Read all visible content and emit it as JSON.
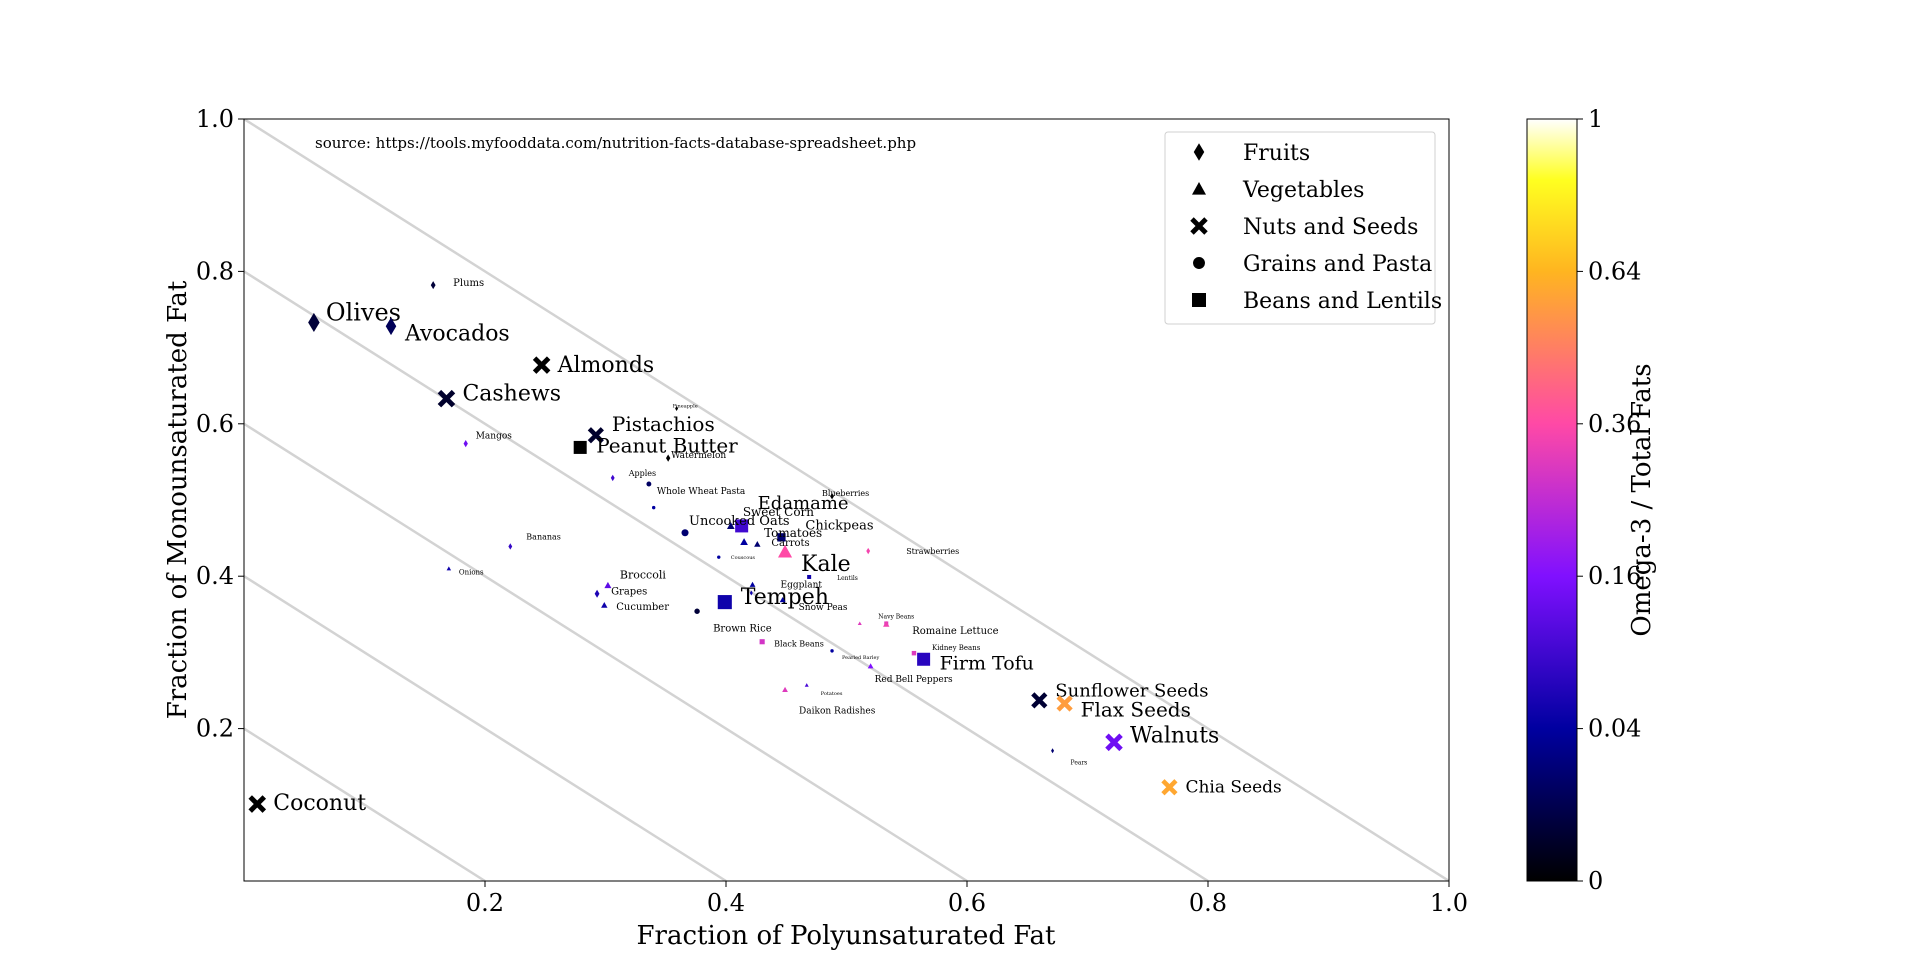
{
  "chart_data": {
    "type": "scatter",
    "xlabel": "Fraction of Polyunsaturated Fat",
    "ylabel": "Fraction of Monounsaturated Fat",
    "xlim": [
      0,
      1.0
    ],
    "ylim": [
      0,
      1.0
    ],
    "xticks": [
      "0.2",
      "0.4",
      "0.6",
      "0.8",
      "1.0"
    ],
    "xtick_values": [
      0.2,
      0.4,
      0.6,
      0.8,
      1.0
    ],
    "yticks": [
      "0.2",
      "0.4",
      "0.6",
      "0.8",
      "1.0"
    ],
    "ytick_values": [
      0.2,
      0.4,
      0.6,
      0.8,
      1.0
    ],
    "grid": false,
    "reference_lines_sum": [
      0.2,
      0.4,
      0.6,
      0.8,
      1.0
    ],
    "annotation": "source: https://tools.myfooddata.com/nutrition-facts-database-spreadsheet.php",
    "legend": {
      "placement": "top-right",
      "entries": [
        {
          "group": "fruit",
          "label": "Fruits",
          "marker": "diamond"
        },
        {
          "group": "veg",
          "label": "Vegetables",
          "marker": "triangle"
        },
        {
          "group": "nut",
          "label": "Nuts and Seeds",
          "marker": "x"
        },
        {
          "group": "grain",
          "label": "Grains and Pasta",
          "marker": "circle"
        },
        {
          "group": "bean",
          "label": "Beans and Lentils",
          "marker": "square"
        }
      ]
    },
    "colorbar": {
      "label": "Omega-3 / Total Fats",
      "colormap": "gnuplot2",
      "ticks": [
        "0",
        "0.04",
        "0.16",
        "0.36",
        "0.64",
        "1"
      ],
      "tick_values": [
        0,
        0.04,
        0.16,
        0.36,
        0.64,
        1
      ]
    },
    "points": [
      {
        "name": "Olives",
        "x": 0.058,
        "y": 0.733,
        "group": "fruit",
        "omega3": 0.005,
        "label_size": 24,
        "label_dx": 12,
        "label_dy": -2
      },
      {
        "name": "Avocados",
        "x": 0.122,
        "y": 0.728,
        "group": "fruit",
        "omega3": 0.012,
        "label_size": 22,
        "label_dx": 14,
        "label_dy": 14
      },
      {
        "name": "Almonds",
        "x": 0.247,
        "y": 0.677,
        "group": "nut",
        "omega3": 0.0,
        "label_size": 22,
        "label_dx": 16,
        "label_dy": 7
      },
      {
        "name": "Cashews",
        "x": 0.168,
        "y": 0.633,
        "group": "nut",
        "omega3": 0.003,
        "label_size": 22,
        "label_dx": 16,
        "label_dy": 2
      },
      {
        "name": "Pistachios",
        "x": 0.292,
        "y": 0.585,
        "group": "nut",
        "omega3": 0.003,
        "label_size": 20,
        "label_dx": 16,
        "label_dy": -4
      },
      {
        "name": "Peanut Butter",
        "x": 0.279,
        "y": 0.569,
        "group": "bean",
        "omega3": 0.0,
        "label_size": 20,
        "label_dx": 16,
        "label_dy": 5
      },
      {
        "name": "Coconut",
        "x": 0.011,
        "y": 0.101,
        "group": "nut",
        "omega3": 0.0,
        "label_size": 22,
        "label_dx": 16,
        "label_dy": 6
      },
      {
        "name": "Sunflower Seeds",
        "x": 0.66,
        "y": 0.237,
        "group": "nut",
        "omega3": 0.004,
        "label_size": 18,
        "label_dx": 16,
        "label_dy": -4
      },
      {
        "name": "Flax Seeds",
        "x": 0.681,
        "y": 0.233,
        "group": "nut",
        "omega3": 0.57,
        "label_size": 20,
        "label_dx": 16,
        "label_dy": 13
      },
      {
        "name": "Walnuts",
        "x": 0.722,
        "y": 0.182,
        "group": "nut",
        "omega3": 0.14,
        "label_size": 22,
        "label_dx": 16,
        "label_dy": 0
      },
      {
        "name": "Chia Seeds",
        "x": 0.768,
        "y": 0.123,
        "group": "nut",
        "omega3": 0.6,
        "label_size": 17,
        "label_dx": 16,
        "label_dy": 5
      },
      {
        "name": "Firm Tofu",
        "x": 0.564,
        "y": 0.291,
        "group": "bean",
        "omega3": 0.07,
        "label_size": 19,
        "label_dx": 16,
        "label_dy": 10
      },
      {
        "name": "Tempeh",
        "x": 0.399,
        "y": 0.366,
        "group": "bean",
        "omega3": 0.05,
        "label_size": 22,
        "label_dx": 16,
        "label_dy": 2
      },
      {
        "name": "Kale",
        "x": 0.449,
        "y": 0.432,
        "group": "veg",
        "omega3": 0.36,
        "label_size": 22,
        "label_dx": 16,
        "label_dy": 19
      },
      {
        "name": "Edamame",
        "x": 0.413,
        "y": 0.466,
        "group": "bean",
        "omega3": 0.09,
        "label_size": 18,
        "label_dx": 16,
        "label_dy": -17
      },
      {
        "name": "Chickpeas",
        "x": 0.446,
        "y": 0.451,
        "group": "bean",
        "omega3": 0.02,
        "label_size": 13,
        "label_dx": 24,
        "label_dy": -8
      },
      {
        "name": "Uncooked Oats",
        "x": 0.366,
        "y": 0.457,
        "group": "grain",
        "omega3": 0.02,
        "label_size": 13,
        "label_dx": 4,
        "label_dy": -8
      },
      {
        "name": "Sweet Corn",
        "x": 0.404,
        "y": 0.466,
        "group": "veg",
        "omega3": 0.02,
        "label_size": 12,
        "label_dx": 12,
        "label_dy": -10
      },
      {
        "name": "Tomatoes",
        "x": 0.415,
        "y": 0.445,
        "group": "veg",
        "omega3": 0.04,
        "label_size": 12,
        "label_dx": 20,
        "label_dy": -5
      },
      {
        "name": "Carrots",
        "x": 0.426,
        "y": 0.442,
        "group": "veg",
        "omega3": 0.02,
        "label_size": 10,
        "label_dx": 14,
        "label_dy": 2
      },
      {
        "name": "Broccoli",
        "x": 0.302,
        "y": 0.388,
        "group": "veg",
        "omega3": 0.12,
        "label_size": 11,
        "label_dx": 12,
        "label_dy": -7
      },
      {
        "name": "Grapes",
        "x": 0.293,
        "y": 0.377,
        "group": "fruit",
        "omega3": 0.06,
        "label_size": 10,
        "label_dx": 14,
        "label_dy": 1
      },
      {
        "name": "Cucumber",
        "x": 0.299,
        "y": 0.362,
        "group": "veg",
        "omega3": 0.05,
        "label_size": 10,
        "label_dx": 12,
        "label_dy": 5
      },
      {
        "name": "Brown Rice",
        "x": 0.376,
        "y": 0.354,
        "group": "grain",
        "omega3": 0.005,
        "label_size": 10,
        "label_dx": 16,
        "label_dy": 20
      },
      {
        "name": "Black Beans",
        "x": 0.43,
        "y": 0.314,
        "group": "bean",
        "omega3": 0.28,
        "label_size": 8,
        "label_dx": 12,
        "label_dy": 5
      },
      {
        "name": "Eggplant",
        "x": 0.422,
        "y": 0.389,
        "group": "veg",
        "omega3": 0.04,
        "label_size": 9,
        "label_dx": 28,
        "label_dy": 3
      },
      {
        "name": "Snow Peas",
        "x": 0.447,
        "y": 0.369,
        "group": "veg",
        "omega3": 0.04,
        "label_size": 9,
        "label_dx": 16,
        "label_dy": 10
      },
      {
        "name": "Lentils",
        "x": 0.469,
        "y": 0.399,
        "group": "bean",
        "omega3": 0.05,
        "label_size": 6,
        "label_dx": 28,
        "label_dy": 3
      },
      {
        "name": "Whole Wheat Pasta",
        "x": 0.336,
        "y": 0.521,
        "group": "grain",
        "omega3": 0.015,
        "label_size": 9,
        "label_dx": 8,
        "label_dy": 10
      },
      {
        "name": "Apples",
        "x": 0.306,
        "y": 0.529,
        "group": "fruit",
        "omega3": 0.09,
        "label_size": 8,
        "label_dx": 16,
        "label_dy": -2
      },
      {
        "name": "Watermelon",
        "x": 0.352,
        "y": 0.555,
        "group": "fruit",
        "omega3": 0.0,
        "label_size": 9,
        "label_dx": 3,
        "label_dy": 0
      },
      {
        "name": "Pineapple",
        "x": 0.359,
        "y": 0.62,
        "group": "fruit",
        "omega3": 0.0,
        "label_size": 5,
        "label_dx": -4,
        "label_dy": -1
      },
      {
        "name": "Mangos",
        "x": 0.184,
        "y": 0.574,
        "group": "fruit",
        "omega3": 0.14,
        "label_size": 9,
        "label_dx": 10,
        "label_dy": -5
      },
      {
        "name": "Plums",
        "x": 0.157,
        "y": 0.782,
        "group": "fruit",
        "omega3": 0.005,
        "label_size": 10,
        "label_dx": 20,
        "label_dy": 1
      },
      {
        "name": "Bananas",
        "x": 0.221,
        "y": 0.439,
        "group": "fruit",
        "omega3": 0.08,
        "label_size": 8,
        "label_dx": 16,
        "label_dy": -7
      },
      {
        "name": "Onions",
        "x": 0.17,
        "y": 0.41,
        "group": "veg",
        "omega3": 0.05,
        "label_size": 7,
        "label_dx": 10,
        "label_dy": 6
      },
      {
        "name": "Blueberries",
        "x": 0.488,
        "y": 0.505,
        "group": "fruit",
        "omega3": 0.0,
        "label_size": 8,
        "label_dx": -10,
        "label_dy": 0
      },
      {
        "name": "Strawberries",
        "x": 0.518,
        "y": 0.433,
        "group": "fruit",
        "omega3": 0.34,
        "label_size": 8,
        "label_dx": 38,
        "label_dy": 3
      },
      {
        "name": "Navy Beans",
        "x": 0.533,
        "y": 0.338,
        "group": "bean",
        "omega3": 0.3,
        "label_size": 6,
        "label_dx": -8,
        "label_dy": -5
      },
      {
        "name": "Romaine Lettuce",
        "x": 0.533,
        "y": 0.337,
        "group": "veg",
        "omega3": 0.33,
        "label_size": 10,
        "label_dx": 26,
        "label_dy": 10
      },
      {
        "name": "Kidney Beans",
        "x": 0.556,
        "y": 0.299,
        "group": "bean",
        "omega3": 0.3,
        "label_size": 7,
        "label_dx": 18,
        "label_dy": -3
      },
      {
        "name": "Red Bell Peppers",
        "x": 0.52,
        "y": 0.282,
        "group": "veg",
        "omega3": 0.16,
        "label_size": 9,
        "label_dx": 4,
        "label_dy": 16
      },
      {
        "name": "Pearled Barley",
        "x": 0.488,
        "y": 0.302,
        "group": "grain",
        "omega3": 0.04,
        "label_size": 5,
        "label_dx": 10,
        "label_dy": 8
      },
      {
        "name": "Potatoes",
        "x": 0.467,
        "y": 0.257,
        "group": "veg",
        "omega3": 0.1,
        "label_size": 5,
        "label_dx": 14,
        "label_dy": 10
      },
      {
        "name": "Daikon Radishes",
        "x": 0.449,
        "y": 0.251,
        "group": "veg",
        "omega3": 0.3,
        "label_size": 9,
        "label_dx": 14,
        "label_dy": 24
      },
      {
        "name": "Couscous",
        "x": 0.394,
        "y": 0.425,
        "group": "grain",
        "omega3": 0.04,
        "label_size": 5,
        "label_dx": 12,
        "label_dy": 2
      },
      {
        "name": "Pears",
        "x": 0.671,
        "y": 0.171,
        "group": "fruit",
        "omega3": 0.02,
        "label_size": 6,
        "label_dx": 18,
        "label_dy": 14
      },
      {
        "name": "",
        "x": 0.34,
        "y": 0.49,
        "group": "grain",
        "omega3": 0.04,
        "label_size": 0,
        "label_dx": 0,
        "label_dy": 0
      },
      {
        "name": "",
        "x": 0.511,
        "y": 0.338,
        "group": "veg",
        "omega3": 0.3,
        "label_size": 0,
        "label_dx": 0,
        "label_dy": 0
      },
      {
        "name": "",
        "x": 0.421,
        "y": 0.378,
        "group": "fruit",
        "omega3": 0.05,
        "label_size": 0,
        "label_dx": 0,
        "label_dy": 0
      }
    ]
  }
}
